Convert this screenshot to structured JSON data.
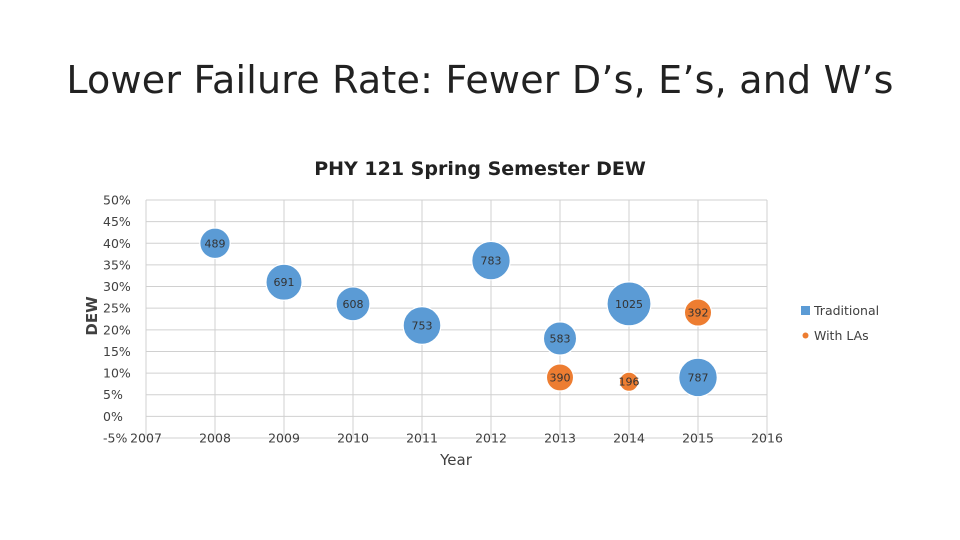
{
  "slide": {
    "title": "Lower Failure Rate: Fewer D’s, E’s, and W’s"
  },
  "chart_data": {
    "type": "bubble",
    "title": "PHY 121 Spring Semester DEW",
    "xlabel": "Year",
    "ylabel": "DEW",
    "x_ticks": [
      "2007",
      "2008",
      "2009",
      "2010",
      "2011",
      "2012",
      "2013",
      "2014",
      "2015",
      "2016"
    ],
    "y_ticks": [
      "-5%",
      "0%",
      "5%",
      "10%",
      "15%",
      "20%",
      "25%",
      "30%",
      "35%",
      "40%",
      "45%",
      "50%"
    ],
    "xlim": [
      2007,
      2016
    ],
    "ylim": [
      -5,
      50
    ],
    "grid": true,
    "legend_position": "right",
    "series": [
      {
        "name": "Traditional",
        "color": "#5B9BD5",
        "points": [
          {
            "x": 2008,
            "y": 40,
            "size": 489
          },
          {
            "x": 2009,
            "y": 31,
            "size": 691
          },
          {
            "x": 2010,
            "y": 26,
            "size": 608
          },
          {
            "x": 2011,
            "y": 21,
            "size": 753
          },
          {
            "x": 2012,
            "y": 36,
            "size": 783
          },
          {
            "x": 2013,
            "y": 18,
            "size": 583
          },
          {
            "x": 2014,
            "y": 26,
            "size": 1025
          },
          {
            "x": 2015,
            "y": 9,
            "size": 787
          }
        ]
      },
      {
        "name": "With LAs",
        "color": "#ED7D31",
        "points": [
          {
            "x": 2013,
            "y": 9,
            "size": 390
          },
          {
            "x": 2014,
            "y": 8,
            "size": 196
          },
          {
            "x": 2015,
            "y": 24,
            "size": 392
          }
        ]
      }
    ]
  }
}
